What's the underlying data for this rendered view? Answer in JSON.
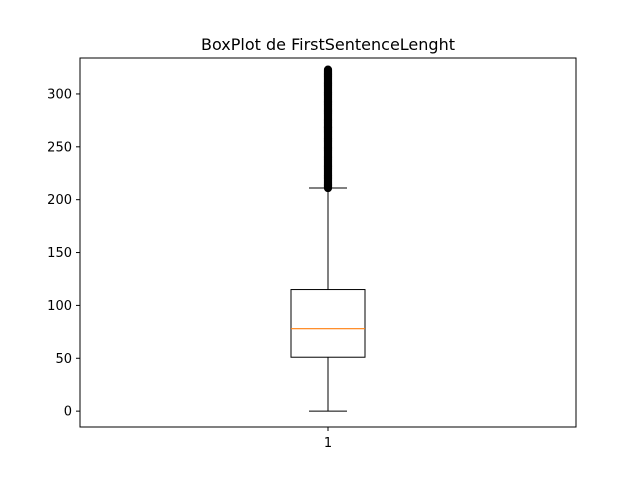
{
  "chart_data": {
    "type": "boxplot",
    "title": "BoxPlot de FirstSentenceLenght",
    "xlabel": "",
    "ylabel": "",
    "categories": [
      "1"
    ],
    "ylim": [
      -15,
      334
    ],
    "y_ticks": [
      0,
      50,
      100,
      150,
      200,
      250,
      300
    ],
    "grid": false,
    "boxes": [
      {
        "category": "1",
        "whisker_low": 0,
        "q1": 51,
        "median": 78,
        "q3": 115,
        "whisker_high": 211,
        "outliers_range": [
          211,
          323
        ]
      }
    ],
    "colors": {
      "box": "#000000",
      "median": "#ff7f0e",
      "outlier": "#000000"
    }
  }
}
